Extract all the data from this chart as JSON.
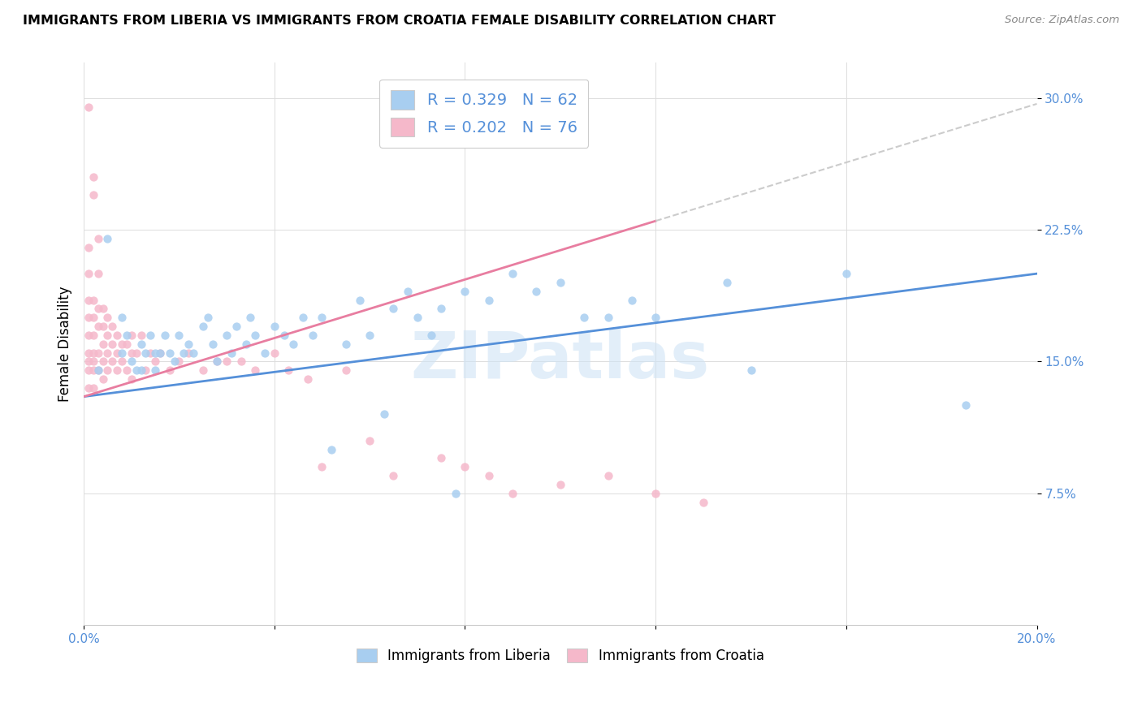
{
  "title": "IMMIGRANTS FROM LIBERIA VS IMMIGRANTS FROM CROATIA FEMALE DISABILITY CORRELATION CHART",
  "source": "Source: ZipAtlas.com",
  "ylabel_label": "Female Disability",
  "x_min": 0.0,
  "x_max": 0.2,
  "y_min": 0.0,
  "y_max": 0.32,
  "x_ticks": [
    0.0,
    0.04,
    0.08,
    0.12,
    0.16,
    0.2
  ],
  "x_tick_labels": [
    "0.0%",
    "",
    "",
    "",
    "",
    "20.0%"
  ],
  "y_ticks": [
    0.075,
    0.15,
    0.225,
    0.3
  ],
  "y_tick_labels": [
    "7.5%",
    "15.0%",
    "22.5%",
    "30.0%"
  ],
  "liberia_R": 0.329,
  "liberia_N": 62,
  "croatia_R": 0.202,
  "croatia_N": 76,
  "liberia_color": "#a8cef0",
  "croatia_color": "#f5b8ca",
  "liberia_line_color": "#5590d9",
  "croatia_line_color": "#e87da0",
  "watermark": "ZIPatlas",
  "liberia_scatter_x": [
    0.003,
    0.005,
    0.008,
    0.008,
    0.009,
    0.01,
    0.011,
    0.012,
    0.012,
    0.013,
    0.014,
    0.015,
    0.015,
    0.016,
    0.017,
    0.018,
    0.019,
    0.02,
    0.021,
    0.022,
    0.023,
    0.025,
    0.026,
    0.027,
    0.028,
    0.03,
    0.031,
    0.032,
    0.034,
    0.035,
    0.036,
    0.038,
    0.04,
    0.042,
    0.044,
    0.046,
    0.048,
    0.05,
    0.052,
    0.055,
    0.058,
    0.06,
    0.063,
    0.065,
    0.068,
    0.07,
    0.073,
    0.075,
    0.078,
    0.08,
    0.085,
    0.09,
    0.095,
    0.1,
    0.105,
    0.11,
    0.115,
    0.12,
    0.135,
    0.14,
    0.16,
    0.185
  ],
  "liberia_scatter_y": [
    0.145,
    0.22,
    0.175,
    0.155,
    0.165,
    0.15,
    0.145,
    0.16,
    0.145,
    0.155,
    0.165,
    0.155,
    0.145,
    0.155,
    0.165,
    0.155,
    0.15,
    0.165,
    0.155,
    0.16,
    0.155,
    0.17,
    0.175,
    0.16,
    0.15,
    0.165,
    0.155,
    0.17,
    0.16,
    0.175,
    0.165,
    0.155,
    0.17,
    0.165,
    0.16,
    0.175,
    0.165,
    0.175,
    0.1,
    0.16,
    0.185,
    0.165,
    0.12,
    0.18,
    0.19,
    0.175,
    0.165,
    0.18,
    0.075,
    0.19,
    0.185,
    0.2,
    0.19,
    0.195,
    0.175,
    0.175,
    0.185,
    0.175,
    0.195,
    0.145,
    0.2,
    0.125
  ],
  "croatia_scatter_x": [
    0.001,
    0.001,
    0.001,
    0.001,
    0.001,
    0.001,
    0.001,
    0.001,
    0.001,
    0.001,
    0.002,
    0.002,
    0.002,
    0.002,
    0.002,
    0.002,
    0.002,
    0.002,
    0.002,
    0.003,
    0.003,
    0.003,
    0.003,
    0.003,
    0.003,
    0.004,
    0.004,
    0.004,
    0.004,
    0.004,
    0.005,
    0.005,
    0.005,
    0.005,
    0.006,
    0.006,
    0.006,
    0.007,
    0.007,
    0.007,
    0.008,
    0.008,
    0.009,
    0.009,
    0.01,
    0.01,
    0.01,
    0.011,
    0.012,
    0.013,
    0.014,
    0.015,
    0.016,
    0.018,
    0.02,
    0.022,
    0.025,
    0.028,
    0.03,
    0.033,
    0.036,
    0.04,
    0.043,
    0.047,
    0.05,
    0.055,
    0.06,
    0.065,
    0.075,
    0.08,
    0.085,
    0.09,
    0.1,
    0.11,
    0.12,
    0.13
  ],
  "croatia_scatter_y": [
    0.295,
    0.215,
    0.2,
    0.185,
    0.175,
    0.165,
    0.155,
    0.15,
    0.145,
    0.135,
    0.255,
    0.245,
    0.185,
    0.175,
    0.165,
    0.155,
    0.15,
    0.145,
    0.135,
    0.22,
    0.2,
    0.18,
    0.17,
    0.155,
    0.145,
    0.18,
    0.17,
    0.16,
    0.15,
    0.14,
    0.175,
    0.165,
    0.155,
    0.145,
    0.17,
    0.16,
    0.15,
    0.165,
    0.155,
    0.145,
    0.16,
    0.15,
    0.16,
    0.145,
    0.165,
    0.155,
    0.14,
    0.155,
    0.165,
    0.145,
    0.155,
    0.15,
    0.155,
    0.145,
    0.15,
    0.155,
    0.145,
    0.15,
    0.15,
    0.15,
    0.145,
    0.155,
    0.145,
    0.14,
    0.09,
    0.145,
    0.105,
    0.085,
    0.095,
    0.09,
    0.085,
    0.075,
    0.08,
    0.085,
    0.075,
    0.07
  ],
  "background_color": "#ffffff",
  "grid_color": "#dddddd"
}
